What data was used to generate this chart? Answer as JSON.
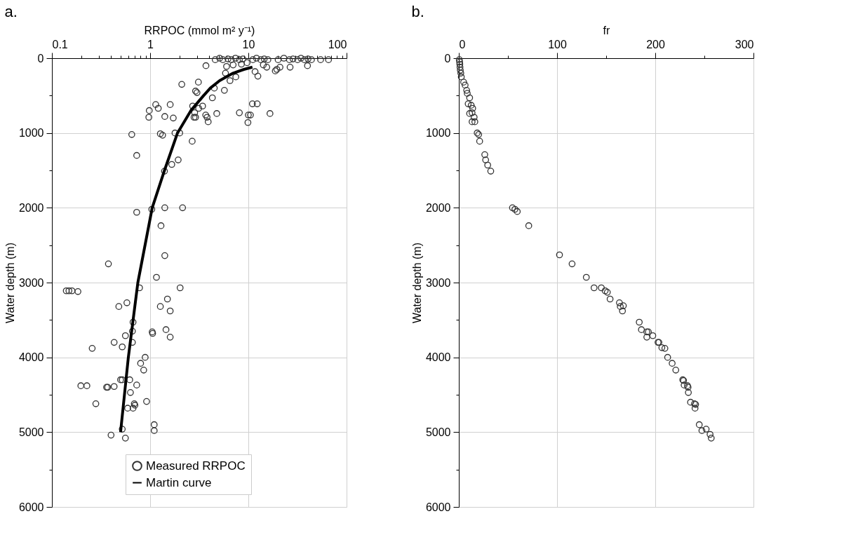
{
  "chart_data": [
    {
      "type": "scatter",
      "title": "a.",
      "xlabel": "RRPOC (mmol m² y⁻¹)",
      "ylabel": "Water depth (m)",
      "log": "x",
      "grid": true,
      "legend": "bottom",
      "marker": "circle",
      "xlim": [
        0.1,
        100
      ],
      "xticks": [
        0.1,
        {
          "value": 0.2,
          "label": null
        },
        {
          "value": 0.3,
          "label": null
        },
        {
          "value": 0.4,
          "label": null
        },
        {
          "value": 0.5,
          "label": null
        },
        {
          "value": 0.6,
          "label": null
        },
        {
          "value": 0.7,
          "label": null
        },
        {
          "value": 0.8,
          "label": null
        },
        {
          "value": 0.9,
          "label": null
        },
        1,
        {
          "value": 2,
          "label": null
        },
        {
          "value": 3,
          "label": null
        },
        {
          "value": 4,
          "label": null
        },
        {
          "value": 5,
          "label": null
        },
        {
          "value": 6,
          "label": null
        },
        {
          "value": 7,
          "label": null
        },
        {
          "value": 8,
          "label": null
        },
        {
          "value": 9,
          "label": null
        },
        10,
        {
          "value": 20,
          "label": null
        },
        {
          "value": 30,
          "label": null
        },
        {
          "value": 40,
          "label": null
        },
        {
          "value": 50,
          "label": null
        },
        {
          "value": 60,
          "label": null
        },
        {
          "value": 70,
          "label": null
        },
        {
          "value": 80,
          "label": null
        },
        {
          "value": 90,
          "label": null
        },
        100
      ],
      "ylim": [
        6000,
        0
      ],
      "yticks": [
        0,
        {
          "value": 500,
          "label": null
        },
        1000,
        {
          "value": 1500,
          "label": null
        },
        2000,
        {
          "value": 2500,
          "label": null
        },
        3000,
        {
          "value": 3500,
          "label": null
        },
        4000,
        {
          "value": 4500,
          "label": null
        },
        5000,
        {
          "value": 5500,
          "label": null
        },
        6000
      ],
      "series": [
        {
          "name": "Measured RRPOC",
          "color": "#333333",
          "x": [
            4.6,
            5.1,
            5.5,
            6.2,
            6.7,
            7.4,
            8.1,
            8.8,
            11.1,
            12.1,
            13.4,
            14.5,
            15.8,
            20.1,
            23,
            26.2,
            28.5,
            31.7,
            34.3,
            37.2,
            40.5,
            43.9,
            54.4,
            65.5,
            6.0,
            7.0,
            8.5,
            9.7,
            14.2,
            15.4,
            19.5,
            21,
            3.7,
            2.1,
            3.1,
            2.9,
            3.0,
            4.5,
            5.7,
            4.3,
            7.45,
            6.5,
            5.85,
            11.7,
            12.5,
            18.8,
            26.6,
            40,
            1.14,
            0.98,
            0.97,
            1.21,
            1.6,
            1.41,
            1.72,
            2.71,
            3.42,
            3.12,
            2.84,
            2.8,
            2.9,
            3.68,
            3.8,
            3.9,
            4.77,
            8.1,
            10.0,
            10.5,
            9.9,
            11.0,
            12.3,
            16.6,
            0.65,
            0.73,
            1.27,
            1.34,
            1.79,
            2.0,
            2.68,
            1.93,
            1.66,
            1.4,
            0.73,
            1.04,
            1.41,
            2.14,
            1.29,
            1.41,
            0.376,
            1.16,
            0.14,
            0.149,
            0.16,
            0.184,
            0.78,
            2.02,
            1.5,
            0.58,
            0.48,
            1.27,
            1.6,
            0.67,
            0.66,
            1.05,
            1.06,
            1.45,
            1.6,
            0.56,
            0.66,
            0.43,
            0.52,
            0.257,
            0.89,
            0.8,
            0.86,
            0.5,
            0.52,
            0.62,
            0.197,
            0.227,
            0.36,
            0.37,
            0.43,
            0.73,
            0.63,
            0.28,
            0.69,
            0.92,
            0.59,
            0.67,
            0.7,
            1.1,
            1.1,
            0.52,
            0.4,
            0.56
          ],
          "values": [
            20,
            0,
            20,
            10,
            20,
            0,
            20,
            10,
            20,
            0,
            20,
            10,
            20,
            20,
            0,
            20,
            10,
            20,
            0,
            20,
            10,
            20,
            20,
            20,
            110,
            90,
            80,
            60,
            90,
            120,
            150,
            120,
            100,
            350,
            320,
            440,
            460,
            400,
            430,
            530,
            250,
            300,
            200,
            180,
            240,
            170,
            120,
            100,
            620,
            700,
            790,
            670,
            620,
            780,
            800,
            640,
            640,
            670,
            730,
            790,
            790,
            760,
            790,
            850,
            740,
            730,
            760,
            760,
            860,
            610,
            610,
            740,
            1020,
            1300,
            1010,
            1030,
            1000,
            1000,
            1110,
            1360,
            1420,
            1510,
            2060,
            2020,
            2000,
            2000,
            2240,
            2640,
            2750,
            2930,
            3110,
            3110,
            3110,
            3120,
            3070,
            3070,
            3220,
            3270,
            3320,
            3320,
            3380,
            3530,
            3650,
            3660,
            3680,
            3630,
            3730,
            3710,
            3800,
            3800,
            3860,
            3880,
            4000,
            4080,
            4170,
            4300,
            4300,
            4300,
            4380,
            4380,
            4400,
            4400,
            4390,
            4370,
            4470,
            4620,
            4620,
            4590,
            4680,
            4680,
            4640,
            4900,
            4980,
            4960,
            5040,
            5080
          ]
        },
        {
          "name": "Martin curve",
          "type": "line",
          "marker": "none",
          "color": "#000000",
          "x": [
            11,
            9,
            7,
            5.1,
            4.1,
            3.5,
            2.6,
            1.9,
            1.4,
            1.05,
            0.75,
            0.6,
            0.5
          ],
          "values": [
            120,
            150,
            200,
            300,
            400,
            500,
            700,
            1000,
            1500,
            2000,
            3000,
            4000,
            5000
          ]
        }
      ]
    },
    {
      "type": "scatter",
      "title": "b.",
      "xlabel": "fr",
      "ylabel": "Water depth (m)",
      "grid": true,
      "marker": "circle",
      "xlim": [
        0,
        300
      ],
      "xticks": [
        0,
        {
          "value": 50,
          "label": null
        },
        100,
        {
          "value": 150,
          "label": null
        },
        200,
        {
          "value": 250,
          "label": null
        },
        300
      ],
      "ylim": [
        6000,
        0
      ],
      "yticks": [
        0,
        {
          "value": 500,
          "label": null
        },
        1000,
        {
          "value": 1500,
          "label": null
        },
        2000,
        {
          "value": 2500,
          "label": null
        },
        3000,
        {
          "value": 3500,
          "label": null
        },
        4000,
        {
          "value": 4500,
          "label": null
        },
        5000,
        {
          "value": 5500,
          "label": null
        },
        6000
      ],
      "series": [
        {
          "color": "#333333",
          "x": [
            0.5,
            0.8,
            1,
            1.2,
            1.5,
            2,
            2.5,
            4.9,
            6.4,
            8,
            8.6,
            11,
            9.5,
            12.6,
            14.1,
            11,
            13.5,
            15.6,
            13.5,
            16.3,
            18.7,
            20.2,
            21.2,
            26.4,
            27.3,
            29.4,
            32.5,
            54.6,
            57.1,
            59.5,
            71.2,
            102.5,
            115.3,
            129.8,
            137.7,
            145.1,
            149,
            151.2,
            154,
            163.5,
            167.5,
            164.4,
            166.6,
            183.7,
            185.9,
            191.4,
            193,
            191.4,
            197.5,
            202.8,
            203.7,
            206.7,
            209.8,
            212.6,
            217.2,
            220.9,
            228,
            228.8,
            229.4,
            232.8,
            233.4,
            233.7,
            235.9,
            239.9,
            241.1,
            240.5,
            244.8,
            247.5,
            251.8,
            255.8,
            257
          ],
          "values": [
            20,
            50,
            80,
            120,
            160,
            200,
            250,
            320,
            360,
            430,
            470,
            530,
            610,
            630,
            670,
            740,
            730,
            790,
            850,
            850,
            1000,
            1020,
            1110,
            1290,
            1360,
            1430,
            1510,
            2000,
            2020,
            2050,
            2240,
            2630,
            2750,
            2930,
            3070,
            3070,
            3110,
            3130,
            3220,
            3270,
            3310,
            3320,
            3380,
            3530,
            3630,
            3660,
            3660,
            3730,
            3710,
            3800,
            3800,
            3870,
            3880,
            4000,
            4080,
            4170,
            4300,
            4310,
            4370,
            4380,
            4400,
            4470,
            4600,
            4620,
            4630,
            4680,
            4900,
            4980,
            4960,
            5030,
            5080
          ]
        }
      ]
    }
  ]
}
